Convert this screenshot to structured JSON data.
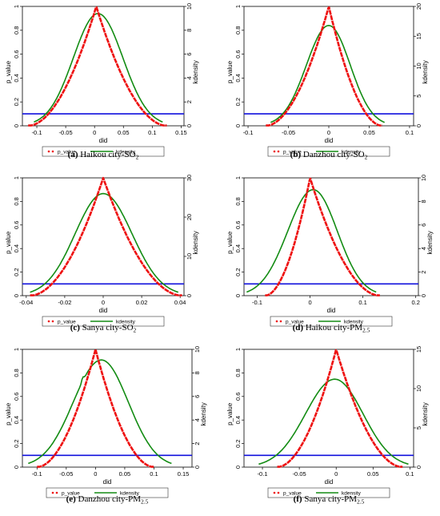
{
  "figure": {
    "legend_p_value": "p_value",
    "legend_kdensity": "kdensity"
  },
  "colors": {
    "p_value": "#ee1111",
    "kdensity": "#138c13",
    "threshold": "#1111dd",
    "axis": "#000000"
  },
  "chart_data": [
    {
      "type": "line",
      "caption_letter": "(a)",
      "caption_text": " Haikou city-SO",
      "caption_sub": "2",
      "xlabel": "did",
      "ylabel_left": "p_value",
      "ylabel_right": "kdensity",
      "xlim": [
        -0.125,
        0.155
      ],
      "xticks": [
        -0.1,
        -0.05,
        0,
        0.05,
        0.1,
        0.15
      ],
      "xtick_labels": [
        "-0.1",
        "-0.05",
        "0",
        "0.05",
        "0.1",
        "0.15"
      ],
      "ylim_left": [
        0,
        1
      ],
      "yticks_left": [
        0,
        0.2,
        0.4,
        0.6,
        0.8,
        1
      ],
      "ytick_labels_left": [
        "0",
        "0.2",
        "0.4",
        "0.6",
        "0.8",
        "1"
      ],
      "ylim_right": [
        0,
        10
      ],
      "yticks_right": [
        0,
        2,
        4,
        6,
        8,
        10
      ],
      "ytick_labels_right": [
        "0",
        "2",
        "4",
        "6",
        "8",
        "10"
      ],
      "threshold": 0.1,
      "series": [
        {
          "key": "p_value",
          "name": "p_value",
          "peak_x": 0.003,
          "x_range": [
            -0.115,
            0.125
          ]
        },
        {
          "key": "kdensity",
          "name": "kdensity",
          "peak_x": 0.006,
          "peak": 9.4,
          "x_range": [
            -0.105,
            0.118
          ]
        }
      ]
    },
    {
      "type": "line",
      "caption_letter": "(b)",
      "caption_text": " Danzhou city-SO",
      "caption_sub": "2",
      "xlabel": "did",
      "ylabel_left": "p_value",
      "ylabel_right": "kdensity",
      "xlim": [
        -0.105,
        0.105
      ],
      "xticks": [
        -0.1,
        -0.05,
        0,
        0.05,
        0.1
      ],
      "xtick_labels": [
        "-0.1",
        "-0.05",
        "0",
        "0.05",
        "0.1"
      ],
      "ylim_left": [
        0,
        1
      ],
      "yticks_left": [
        0,
        0.2,
        0.4,
        0.6,
        0.8,
        1
      ],
      "ytick_labels_left": [
        "0",
        "0.2",
        "0.4",
        "0.6",
        "0.8",
        "1"
      ],
      "ylim_right": [
        0,
        20
      ],
      "yticks_right": [
        0,
        5,
        10,
        15,
        20
      ],
      "ytick_labels_right": [
        "0",
        "5",
        "10",
        "15",
        "20"
      ],
      "threshold": 0.1,
      "series": [
        {
          "key": "p_value",
          "name": "p_value",
          "peak_x": 0.0,
          "x_range": [
            -0.078,
            0.066
          ]
        },
        {
          "key": "kdensity",
          "name": "kdensity",
          "peak_x": 0.0,
          "peak": 16.8,
          "x_range": [
            -0.072,
            0.069
          ]
        }
      ]
    },
    {
      "type": "line",
      "caption_letter": "(c)",
      "caption_text": " Sanya city-SO",
      "caption_sub": "2",
      "xlabel": "did",
      "ylabel_left": "p_value",
      "ylabel_right": "kdensity",
      "xlim": [
        -0.042,
        0.042
      ],
      "xticks": [
        -0.04,
        -0.02,
        0,
        0.02,
        0.04
      ],
      "xtick_labels": [
        "-0.04",
        "-0.02",
        "0",
        "0.02",
        "0.04"
      ],
      "ylim_left": [
        0,
        1
      ],
      "yticks_left": [
        0,
        0.2,
        0.4,
        0.6,
        0.8,
        1
      ],
      "ytick_labels_left": [
        "0",
        "0.2",
        "0.4",
        "0.6",
        "0.8",
        "1"
      ],
      "ylim_right": [
        0,
        30
      ],
      "yticks_right": [
        0,
        10,
        20,
        30
      ],
      "ytick_labels_right": [
        "0",
        "10",
        "20",
        "30"
      ],
      "threshold": 0.1,
      "series": [
        {
          "key": "p_value",
          "name": "p_value",
          "peak_x": 0.0,
          "x_range": [
            -0.038,
            0.041
          ]
        },
        {
          "key": "kdensity",
          "name": "kdensity",
          "peak_x": 0.0,
          "peak": 26.0,
          "x_range": [
            -0.038,
            0.039
          ]
        }
      ]
    },
    {
      "type": "line",
      "caption_letter": "(d)",
      "caption_text": " Haikou city-PM",
      "caption_sub": "2.5",
      "xlabel": "did",
      "ylabel_left": "p_value",
      "ylabel_right": "kdensity",
      "xlim": [
        -0.125,
        0.205
      ],
      "xticks": [
        -0.1,
        0,
        0.1,
        0.2
      ],
      "xtick_labels": [
        "-0.1",
        "0",
        "0.1",
        "0.2"
      ],
      "ylim_left": [
        0,
        1
      ],
      "yticks_left": [
        0,
        0.2,
        0.4,
        0.6,
        0.8,
        1
      ],
      "ytick_labels_left": [
        "0",
        "0.2",
        "0.4",
        "0.6",
        "0.8",
        "1"
      ],
      "ylim_right": [
        0,
        10
      ],
      "yticks_right": [
        0,
        2,
        4,
        6,
        8,
        10
      ],
      "ytick_labels_right": [
        "0",
        "2",
        "4",
        "6",
        "8",
        "10"
      ],
      "threshold": 0.1,
      "series": [
        {
          "key": "p_value",
          "name": "p_value",
          "peak_x": 0.0,
          "x_range": [
            -0.085,
            0.132
          ]
        },
        {
          "key": "kdensity",
          "name": "kdensity",
          "peak_x": 0.006,
          "peak": 9.0,
          "x_range": [
            -0.12,
            0.125
          ]
        }
      ]
    },
    {
      "type": "line",
      "caption_letter": "(e)",
      "caption_text": " Danzhou city-PM",
      "caption_sub": "2.5",
      "xlabel": "did",
      "ylabel_left": "p_value",
      "ylabel_right": "kdensity",
      "xlim": [
        -0.125,
        0.165
      ],
      "xticks": [
        -0.1,
        -0.05,
        0,
        0.05,
        0.1,
        0.15
      ],
      "xtick_labels": [
        "-0.1",
        "-0.05",
        "0",
        "0.05",
        "0.1",
        "0.15"
      ],
      "ylim_left": [
        0,
        1
      ],
      "yticks_left": [
        0,
        0.2,
        0.4,
        0.6,
        0.8,
        1
      ],
      "ytick_labels_left": [
        "0",
        "0.2",
        "0.4",
        "0.6",
        "0.8",
        "1"
      ],
      "ylim_right": [
        0,
        10
      ],
      "yticks_right": [
        0,
        2,
        4,
        6,
        8,
        10
      ],
      "ytick_labels_right": [
        "0",
        "2",
        "4",
        "6",
        "8",
        "10"
      ],
      "threshold": 0.1,
      "series": [
        {
          "key": "p_value",
          "name": "p_value",
          "peak_x": 0.0,
          "x_range": [
            -0.1,
            0.1
          ]
        },
        {
          "key": "kdensity",
          "name": "kdensity",
          "peak_x": 0.01,
          "peak": 9.1,
          "shoulder": 7.7,
          "x_range": [
            -0.115,
            0.13
          ]
        }
      ]
    },
    {
      "type": "line",
      "caption_letter": "(f)",
      "caption_text": " Sanya city-PM",
      "caption_sub": "2.5",
      "xlabel": "did",
      "ylabel_left": "p_value",
      "ylabel_right": "kdensity",
      "xlim": [
        -0.125,
        0.105
      ],
      "xticks": [
        -0.1,
        -0.05,
        0,
        0.05,
        0.1
      ],
      "xtick_labels": [
        "-0.1",
        "-0.05",
        "0",
        "0.05",
        "0.1"
      ],
      "ylim_left": [
        0,
        1
      ],
      "yticks_left": [
        0,
        0.2,
        0.4,
        0.6,
        0.8,
        1
      ],
      "ytick_labels_left": [
        "0",
        "0.2",
        "0.4",
        "0.6",
        "0.8",
        "1"
      ],
      "ylim_right": [
        0,
        15
      ],
      "yticks_right": [
        0,
        5,
        10,
        15
      ],
      "ytick_labels_right": [
        "0",
        "5",
        "10",
        "15"
      ],
      "threshold": 0.1,
      "series": [
        {
          "key": "p_value",
          "name": "p_value",
          "peak_x": 0.0,
          "x_range": [
            -0.08,
            0.09
          ]
        },
        {
          "key": "kdensity",
          "name": "kdensity",
          "peak_x": -0.002,
          "peak": 11.2,
          "x_range": [
            -0.105,
            0.098
          ]
        }
      ]
    }
  ]
}
